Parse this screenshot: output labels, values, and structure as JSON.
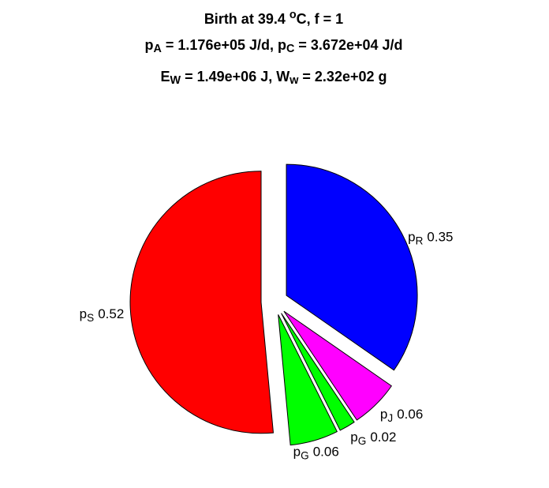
{
  "chart_data": {
    "type": "pie",
    "title": [
      [
        {
          "text": "Birth at 39.4 "
        },
        {
          "text": "o",
          "shift": "sup"
        },
        {
          "text": "C, f = 1"
        }
      ],
      [
        {
          "text": "p"
        },
        {
          "text": "A",
          "shift": "sub"
        },
        {
          "text": " = 1.176e+05 J/d, p"
        },
        {
          "text": "C",
          "shift": "sub"
        },
        {
          "text": " = 3.672e+04 J/d"
        }
      ],
      [
        {
          "text": "E"
        },
        {
          "text": "W",
          "shift": "sub"
        },
        {
          "text": " = 1.49e+06 J, W"
        },
        {
          "text": "w",
          "shift": "sub"
        },
        {
          "text": " = 2.32e+02 g"
        }
      ]
    ],
    "categories": [
      [
        {
          "text": "p"
        },
        {
          "text": "R",
          "shift": "sub"
        }
      ],
      [
        {
          "text": "p"
        },
        {
          "text": "J",
          "shift": "sub"
        }
      ],
      [
        {
          "text": "p"
        },
        {
          "text": "G",
          "shift": "sub"
        }
      ],
      [
        {
          "text": "p"
        },
        {
          "text": "G",
          "shift": "sub"
        }
      ],
      [
        {
          "text": "p"
        },
        {
          "text": "S",
          "shift": "sub"
        }
      ]
    ],
    "values": [
      0.35,
      0.06,
      0.02,
      0.06,
      0.52
    ],
    "colors": [
      "#0000ff",
      "#ff00ff",
      "#00ff00",
      "#00ff00",
      "#ff0000"
    ],
    "explode": true
  }
}
